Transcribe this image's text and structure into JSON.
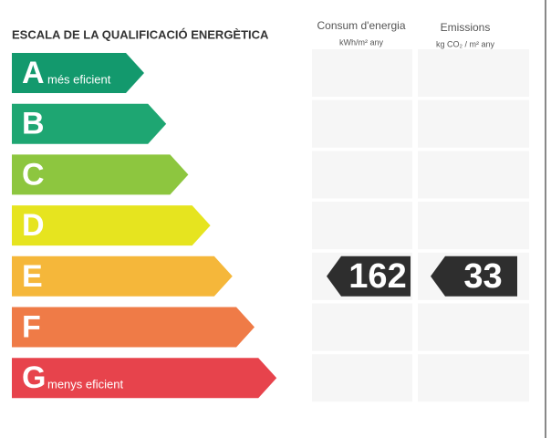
{
  "header": {
    "title": "ESCALA DE LA QUALIFICACIÓ ENERGÈTICA"
  },
  "columns": [
    {
      "title": "Consum d'energia",
      "unit": "kWh/m² any"
    },
    {
      "title": "Emissions",
      "unit": "kg CO₂ / m² any"
    }
  ],
  "grades": [
    {
      "letter": "A",
      "label": "més eficient",
      "color": "#13996d"
    },
    {
      "letter": "B",
      "color": "#1ea672"
    },
    {
      "letter": "C",
      "color": "#8dc63f"
    },
    {
      "letter": "D",
      "color": "#e6e41f"
    },
    {
      "letter": "E",
      "color": "#f5b73a",
      "energy": 162,
      "emissions": 33
    },
    {
      "letter": "F",
      "color": "#ef7b47"
    },
    {
      "letter": "G",
      "label": "menys eficient",
      "color": "#e7434c"
    }
  ]
}
